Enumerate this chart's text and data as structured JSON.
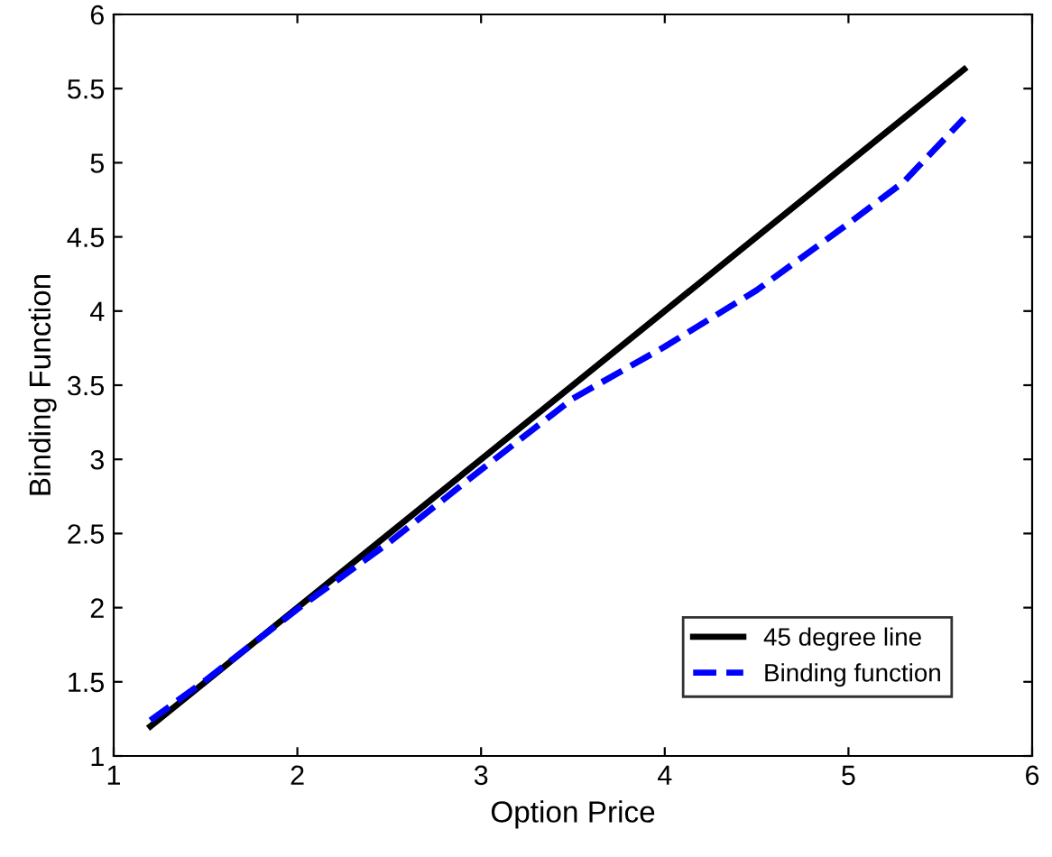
{
  "chart_data": {
    "type": "line",
    "xlabel": "Option Price",
    "ylabel": "Binding Function",
    "xlim": [
      1,
      6
    ],
    "ylim": [
      1,
      6
    ],
    "xticks": [
      1,
      2,
      3,
      4,
      5,
      6
    ],
    "yticks": [
      1,
      1.5,
      2,
      2.5,
      3,
      3.5,
      4,
      4.5,
      5,
      5.5,
      6
    ],
    "grid": false,
    "legend": "bottom right",
    "series": [
      {
        "name": "45 degree line",
        "color": "#000000",
        "line_style": "solid",
        "x": [
          1.2,
          5.63
        ],
        "values": [
          1.2,
          5.63
        ]
      },
      {
        "name": "Binding function",
        "color": "#0000ff",
        "line_style": "dashed",
        "x": [
          1.2,
          1.5,
          2,
          2.5,
          3,
          3.5,
          4,
          4.5,
          5,
          5.3,
          5.63
        ],
        "values": [
          1.24,
          1.51,
          1.99,
          2.44,
          2.93,
          3.41,
          3.76,
          4.14,
          4.59,
          4.87,
          5.3
        ]
      }
    ]
  }
}
